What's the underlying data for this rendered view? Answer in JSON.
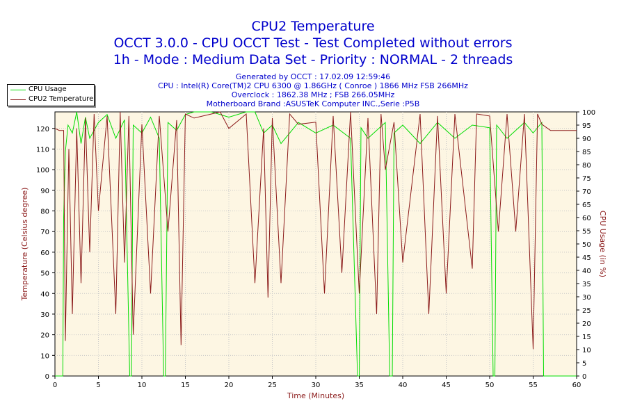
{
  "chart_data": {
    "type": "line",
    "title": "CPU2 Temperature",
    "subtitle_lines": [
      "OCCT 3.0.0 - CPU OCCT Test - Test Completed without errors",
      "1h - Mode : Medium Data Set - Priority : NORMAL - 2 threads"
    ],
    "info_lines": [
      "Generated by OCCT : 17.02.09 12:59:46",
      "CPU : Intel(R) Core(TM)2 CPU 6300 @ 1.86GHz ( Conroe ) 1866 MHz FSB 266MHz",
      "Overclock : 1862.38 MHz ; FSB 266.05MHz",
      "Motherboard Brand :ASUSTeK Computer INC.,Serie :P5B"
    ],
    "xlabel": "Time (Minutes)",
    "ylabel_left": "Temperature (Celsius degree)",
    "ylabel_right": "CPU Usage (in %)",
    "xlim": [
      0,
      60
    ],
    "ylim_left": [
      0,
      128
    ],
    "ylim_right": [
      0,
      100
    ],
    "x_ticks": [
      0,
      5,
      10,
      15,
      20,
      25,
      30,
      35,
      40,
      45,
      50,
      55,
      60
    ],
    "y_left_ticks": [
      0,
      10,
      20,
      30,
      40,
      50,
      60,
      70,
      80,
      90,
      100,
      110,
      120
    ],
    "y_right_ticks": [
      0,
      5,
      10,
      15,
      20,
      25,
      30,
      35,
      40,
      45,
      50,
      55,
      60,
      65,
      70,
      75,
      80,
      85,
      90,
      95,
      100
    ],
    "grid": true,
    "legend_position": "top-left, outside plot",
    "series": [
      {
        "name": "CPU Usage",
        "axis": "right",
        "color": "#00dd00",
        "x": [
          0,
          0.9,
          1.0,
          1.2,
          1.5,
          2.0,
          2.5,
          3.0,
          3.5,
          4.0,
          5.0,
          6.0,
          7.0,
          8.0,
          8.6,
          8.8,
          9.0,
          10.0,
          11.0,
          12.0,
          12.5,
          12.7,
          13.0,
          14.0,
          15.0,
          16.0,
          18.0,
          20.0,
          22.0,
          23.0,
          23.5,
          24.0,
          25.0,
          26.0,
          28.0,
          30.0,
          32.0,
          34.0,
          34.8,
          35.0,
          35.2,
          36.0,
          38.0,
          38.5,
          38.8,
          39.0,
          40.0,
          42.0,
          44.0,
          46.0,
          48.0,
          50.0,
          50.4,
          50.6,
          50.8,
          52.0,
          54.0,
          55.0,
          56.0,
          56.2,
          56.4,
          60.0
        ],
        "values": [
          0,
          0,
          60,
          85,
          95,
          92,
          100,
          88,
          98,
          90,
          96,
          99,
          90,
          97,
          0,
          0,
          95,
          92,
          98,
          90,
          0,
          0,
          96,
          93,
          99,
          100,
          100,
          98,
          100,
          100,
          96,
          92,
          95,
          88,
          96,
          92,
          95,
          90,
          0,
          0,
          94,
          90,
          96,
          0,
          0,
          92,
          95,
          88,
          96,
          90,
          95,
          94,
          0,
          0,
          95,
          90,
          96,
          92,
          96,
          0,
          0,
          0
        ]
      },
      {
        "name": "CPU2 Temperature",
        "axis": "left",
        "color": "#8b1a1a",
        "x": [
          0,
          0.5,
          1.0,
          1.2,
          1.4,
          1.6,
          2.0,
          2.5,
          3.0,
          3.5,
          4.0,
          4.5,
          5.0,
          6.0,
          7.0,
          7.5,
          8.0,
          8.5,
          9.0,
          10.0,
          11.0,
          12.0,
          13.0,
          14.0,
          14.5,
          15.0,
          16.0,
          18.0,
          19.0,
          20.0,
          22.0,
          23.0,
          24.0,
          24.5,
          25.0,
          26.0,
          27.0,
          28.0,
          30.0,
          31.0,
          32.0,
          33.0,
          34.0,
          35.0,
          36.0,
          37.0,
          37.5,
          38.0,
          39.0,
          40.0,
          42.0,
          43.0,
          44.0,
          45.0,
          46.0,
          48.0,
          48.5,
          50.0,
          51.0,
          52.0,
          53.0,
          54.0,
          55.0,
          55.5,
          56.0,
          57.0,
          58.0,
          60.0
        ],
        "values": [
          120,
          119,
          119,
          17,
          65,
          110,
          30,
          120,
          45,
          125,
          60,
          127,
          80,
          126,
          30,
          128,
          55,
          126,
          20,
          122,
          40,
          126,
          70,
          124,
          15,
          127,
          125,
          127,
          128,
          120,
          127,
          45,
          120,
          38,
          125,
          45,
          127,
          122,
          123,
          40,
          126,
          50,
          128,
          40,
          125,
          30,
          127,
          100,
          123,
          55,
          127,
          30,
          126,
          40,
          127,
          52,
          127,
          126,
          70,
          127,
          70,
          127,
          13,
          127,
          122,
          119,
          119,
          119
        ]
      }
    ]
  }
}
